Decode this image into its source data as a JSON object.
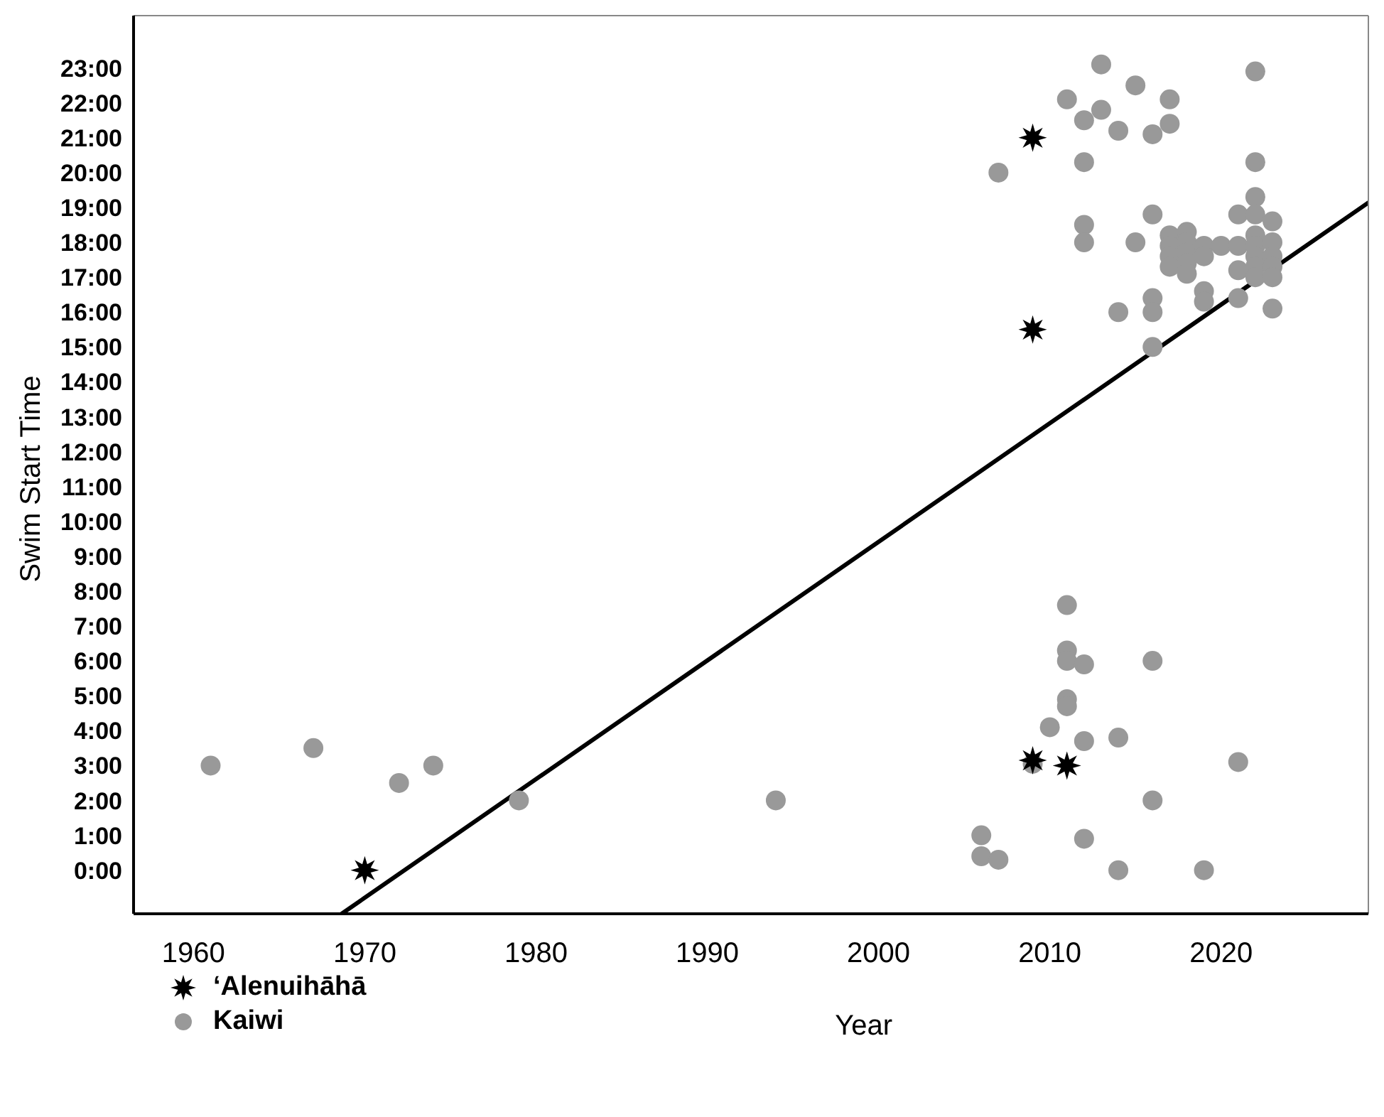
{
  "chart_data": {
    "type": "scatter",
    "xlabel": "Year",
    "ylabel": "Swim Start Time",
    "xlim": [
      1956.5,
      2028.6
    ],
    "ylim": [
      -1.25,
      24.5
    ],
    "xticks": [
      1960,
      1970,
      1980,
      1990,
      2000,
      2010,
      2020
    ],
    "yticks": [
      {
        "value": 0,
        "label": "0:00"
      },
      {
        "value": 1,
        "label": "1:00"
      },
      {
        "value": 2,
        "label": "2:00"
      },
      {
        "value": 3,
        "label": "3:00"
      },
      {
        "value": 4,
        "label": "4:00"
      },
      {
        "value": 5,
        "label": "5:00"
      },
      {
        "value": 6,
        "label": "6:00"
      },
      {
        "value": 7,
        "label": "7:00"
      },
      {
        "value": 8,
        "label": "8:00"
      },
      {
        "value": 9,
        "label": "9:00"
      },
      {
        "value": 10,
        "label": "10:00"
      },
      {
        "value": 11,
        "label": "11:00"
      },
      {
        "value": 12,
        "label": "12:00"
      },
      {
        "value": 13,
        "label": "13:00"
      },
      {
        "value": 14,
        "label": "14:00"
      },
      {
        "value": 15,
        "label": "15:00"
      },
      {
        "value": 16,
        "label": "16:00"
      },
      {
        "value": 17,
        "label": "17:00"
      },
      {
        "value": 18,
        "label": "18:00"
      },
      {
        "value": 19,
        "label": "19:00"
      },
      {
        "value": 20,
        "label": "20:00"
      },
      {
        "value": 21,
        "label": "21:00"
      },
      {
        "value": 22,
        "label": "22:00"
      },
      {
        "value": 23,
        "label": "23:00"
      }
    ],
    "grid": false,
    "legend": "bottom left",
    "series": [
      {
        "name": "‘Alenuihāhā",
        "marker": "star",
        "color": "#000000",
        "x": [
          1970,
          2009,
          2011,
          2009,
          2009
        ],
        "values": [
          0.0,
          3.15,
          3.0,
          21.0,
          15.5
        ]
      },
      {
        "name": "Kaiwi",
        "marker": "circle",
        "color": "#999999",
        "x": [
          1961,
          1967,
          1972,
          1974,
          1979,
          1994,
          2011,
          2011,
          2011,
          2012,
          2016,
          2011,
          2011,
          2010,
          2012,
          2014,
          2009,
          2021,
          2016,
          2006,
          2006,
          2007,
          2012,
          2014,
          2019,
          2013,
          2022,
          2015,
          2011,
          2017,
          2013,
          2012,
          2017,
          2014,
          2016,
          2012,
          2022,
          2007,
          2022,
          2016,
          2021,
          2022,
          2023,
          2012,
          2012,
          2015,
          2017,
          2017,
          2017,
          2017,
          2018,
          2018,
          2018,
          2018,
          2018,
          2019,
          2019,
          2020,
          2021,
          2021,
          2022,
          2022,
          2022,
          2022,
          2022,
          2023,
          2023,
          2023,
          2016,
          2016,
          2014,
          2019,
          2019,
          2021,
          2023,
          2023,
          2016
        ],
        "values": [
          3.0,
          3.5,
          2.5,
          3.0,
          2.0,
          2.0,
          7.6,
          6.3,
          6.0,
          5.9,
          6.0,
          4.9,
          4.7,
          4.1,
          3.7,
          3.8,
          3.05,
          3.1,
          2.0,
          1.0,
          0.4,
          0.3,
          0.9,
          0.0,
          0.0,
          23.1,
          22.9,
          22.5,
          22.1,
          22.1,
          21.8,
          21.5,
          21.4,
          21.2,
          21.1,
          20.3,
          20.3,
          20.0,
          19.3,
          18.8,
          18.8,
          18.8,
          18.6,
          18.5,
          18.0,
          18.0,
          18.2,
          17.9,
          17.6,
          17.3,
          18.3,
          18.0,
          17.7,
          17.4,
          17.1,
          17.9,
          17.6,
          17.9,
          17.9,
          17.2,
          18.2,
          17.9,
          17.6,
          17.3,
          17.0,
          18.0,
          17.6,
          17.3,
          16.4,
          16.0,
          16.0,
          16.6,
          16.3,
          16.4,
          17.0,
          16.1,
          15.0
        ]
      },
      {
        "type": "line",
        "color": "#000000",
        "line_style": "solid",
        "marker": "none",
        "x": [
          1968.65,
          2028.6
        ],
        "values": [
          -1.25,
          19.14
        ]
      }
    ]
  }
}
